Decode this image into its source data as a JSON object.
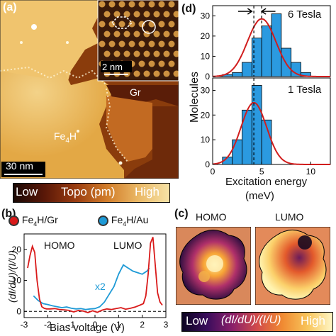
{
  "panel_a": {
    "letter": "(a)",
    "inset_scalebar": "2 nm",
    "main_scalebar": "30 nm",
    "label_gr": "Gr",
    "label_fe4h": "Fe",
    "label_fe4h_sub": "4",
    "label_fe4h_tail": "H",
    "colorbar_low": "Low",
    "colorbar_mid": "Topo (pm)",
    "colorbar_high": "High"
  },
  "panel_b": {
    "letter": "(b)",
    "legend": [
      {
        "prefix": "Fe",
        "sub": "4",
        "suffix": "H/Gr",
        "color": "#d91a1a"
      },
      {
        "prefix": "Fe",
        "sub": "4",
        "suffix": "H/Au",
        "color": "#1e9ad6"
      }
    ],
    "homo_label": "HOMO",
    "lumo_label": "LUMO",
    "scale_label": "x2",
    "xlabel": "Bias voltage (V)",
    "ylabel": "(dI/dU)/(I/U)"
  },
  "panel_c": {
    "letter": "(c)",
    "homo_label": "HOMO",
    "lumo_label": "LUMO",
    "colorbar_low": "Low",
    "colorbar_mid": "(dI/dU)/(I/U)",
    "colorbar_high": "High"
  },
  "panel_d": {
    "letter": "(d)",
    "top_label": "6 Tesla",
    "bottom_label": "1 Tesla",
    "ylabel": "Molecules",
    "xlabel_line1": "Excitation energy",
    "xlabel_line2": "(meV)"
  },
  "chart_data": [
    {
      "type": "line",
      "panel": "b",
      "xlabel": "Bias voltage (V)",
      "ylabel": "(dI/dU)/(I/U)",
      "xlim": [
        -3,
        3
      ],
      "xticks": [
        -3,
        -2,
        -1,
        0,
        1,
        2,
        3
      ],
      "ylim": [
        -2,
        25
      ],
      "yticks": [
        0,
        10,
        20
      ],
      "series": [
        {
          "name": "Fe4H/Gr",
          "color": "#d91a1a",
          "x": [
            -2.85,
            -2.75,
            -2.65,
            -2.55,
            -2.45,
            -2.35,
            -2.25,
            -2.15,
            -2.05,
            -1.9,
            -1.7,
            -1.5,
            -1.3,
            -1.1,
            -0.9,
            -0.7,
            -0.5,
            -0.3,
            -0.1,
            0.1,
            0.3,
            0.5,
            0.7,
            0.9,
            1.1,
            1.3,
            1.5,
            1.7,
            1.9,
            2.05,
            2.15,
            2.25,
            2.35,
            2.45,
            2.55,
            2.65,
            2.75,
            2.85
          ],
          "y": [
            14,
            18,
            21,
            19,
            10,
            4,
            1.5,
            1,
            0.8,
            0.8,
            0.9,
            0.6,
            0.5,
            0.3,
            -0.2,
            0.3,
            0.1,
            -0.4,
            0.2,
            -0.3,
            0.4,
            0.8,
            0.6,
            0.9,
            1.2,
            0.7,
            1.0,
            1.4,
            2.0,
            2.5,
            5,
            12,
            22,
            24,
            15,
            6,
            3,
            2
          ]
        },
        {
          "name": "Fe4H/Au",
          "color": "#1e9ad6",
          "scale_note": "x2",
          "x": [
            -2.6,
            -2.4,
            -2.2,
            -2.0,
            -1.8,
            -1.6,
            -1.4,
            -1.2,
            -1.0,
            -0.8,
            -0.6,
            -0.4,
            -0.2,
            0.0,
            0.2,
            0.4,
            0.6,
            0.8,
            1.0,
            1.2,
            1.4,
            1.6,
            1.8,
            2.0,
            2.2,
            2.3
          ],
          "y": [
            5,
            3.5,
            2.5,
            2.2,
            1.8,
            1.5,
            1.2,
            1.4,
            1.0,
            0.8,
            0.9,
            0.6,
            0.8,
            0.9,
            1.5,
            3,
            5.5,
            8,
            12,
            15,
            14,
            13,
            12.5,
            12,
            13,
            14
          ]
        }
      ]
    },
    {
      "type": "bar",
      "panel": "d-top",
      "label": "6 Tesla",
      "bin_edges": [
        1,
        2,
        3,
        4,
        5,
        6,
        7,
        8,
        9,
        10
      ],
      "values": [
        1,
        2,
        7,
        19,
        25,
        31,
        14,
        7,
        2
      ],
      "ylim": [
        0,
        35
      ],
      "yticks": [
        0,
        10,
        20,
        30
      ],
      "fit": {
        "kind": "gaussian",
        "center": 5.0,
        "sigma": 1.45,
        "amplitude": 28.5,
        "color": "#d11d1d"
      },
      "dashed_line_x": 4.2
    },
    {
      "type": "bar",
      "panel": "d-bottom",
      "label": "1 Tesla",
      "bin_edges": [
        1,
        2,
        3,
        4,
        5,
        6,
        7,
        8,
        9,
        10
      ],
      "values": [
        3,
        10,
        22,
        32,
        18,
        0,
        0,
        0,
        0
      ],
      "ylim": [
        0,
        35
      ],
      "yticks": [
        0,
        10,
        20,
        30
      ],
      "fit": {
        "kind": "gaussian",
        "center": 4.2,
        "sigma": 1.3,
        "amplitude": 25,
        "color": "#d11d1d"
      },
      "dashed_line_x": 4.2,
      "xlabel": "Excitation energy (meV)",
      "xticks": [
        0,
        5,
        10
      ]
    }
  ]
}
